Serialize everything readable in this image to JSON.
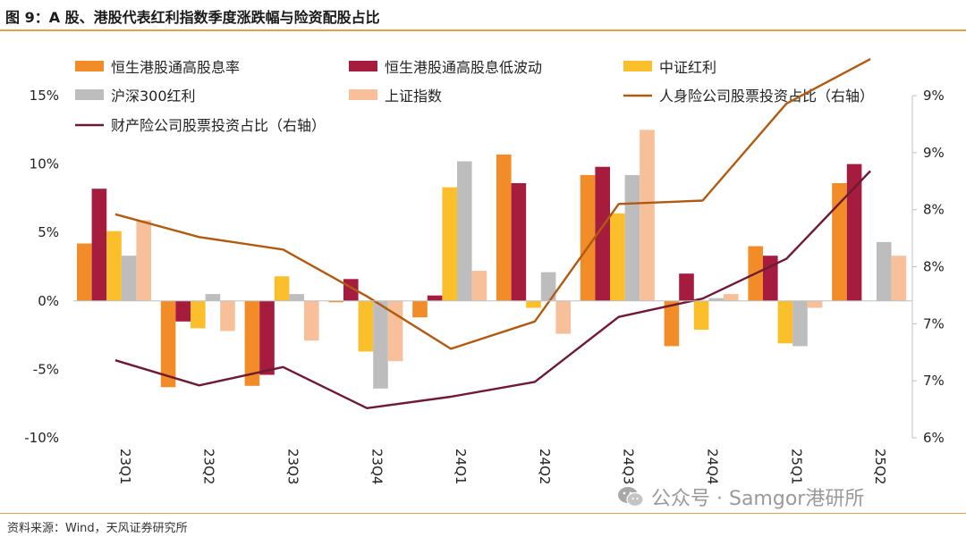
{
  "header": {
    "title": "图 9：A 股、港股代表红利指数季度涨跌幅与险资配股占比"
  },
  "footer": {
    "source": "资料来源：Wind，天风证券研究所"
  },
  "watermark": {
    "text": "公众号 · Samgor港研所",
    "icon": "wechat-icon"
  },
  "chart_data": {
    "type": "bar",
    "title": "",
    "categories": [
      "23Q1",
      "23Q2",
      "23Q3",
      "23Q4",
      "24Q1",
      "24Q2",
      "24Q3",
      "24Q4",
      "25Q1",
      "25Q2"
    ],
    "left_axis": {
      "ylim": [
        -10,
        15
      ],
      "ticks": [
        -10,
        -5,
        0,
        5,
        10,
        15
      ],
      "tick_labels": [
        "-10%",
        "-5%",
        "0%",
        "5%",
        "10%",
        "15%"
      ]
    },
    "right_axis": {
      "ylim": [
        6,
        9
      ],
      "ticks": [
        6,
        6.5,
        7,
        7.5,
        8,
        8.5,
        9
      ],
      "tick_labels": [
        "6%",
        "7%",
        "7%",
        "8%",
        "8%",
        "9%",
        "9%"
      ]
    },
    "series": [
      {
        "name": "恒生港股通高股息率",
        "kind": "bar",
        "axis": "left",
        "color": "#f28c28",
        "values": [
          4.2,
          -6.3,
          -6.2,
          -0.1,
          -1.2,
          10.7,
          9.2,
          -3.3,
          4.0,
          8.6
        ]
      },
      {
        "name": "恒生港股通高股息低波动",
        "kind": "bar",
        "axis": "left",
        "color": "#a51c3f",
        "values": [
          8.2,
          -1.5,
          -5.4,
          1.6,
          0.4,
          8.6,
          9.8,
          2.0,
          3.3,
          10.0
        ]
      },
      {
        "name": "中证红利",
        "kind": "bar",
        "axis": "left",
        "color": "#fbbf2c",
        "values": [
          5.1,
          -2.0,
          1.8,
          -3.7,
          8.3,
          -0.5,
          6.4,
          -2.1,
          -3.1,
          0.0
        ]
      },
      {
        "name": "沪深300红利",
        "kind": "bar",
        "axis": "left",
        "color": "#bdbdbd",
        "values": [
          3.3,
          0.5,
          0.5,
          -6.4,
          10.2,
          2.1,
          9.2,
          0.2,
          -3.3,
          4.3
        ]
      },
      {
        "name": "上证指数",
        "kind": "bar",
        "axis": "left",
        "color": "#f7c09a",
        "values": [
          5.9,
          -2.2,
          -2.9,
          -4.4,
          2.2,
          -2.4,
          12.5,
          0.5,
          -0.5,
          3.3
        ]
      },
      {
        "name": "人身险公司股票投资占比（右轴）",
        "kind": "line",
        "axis": "right",
        "color": "#b05a12",
        "values": [
          7.96,
          7.76,
          7.65,
          7.24,
          6.78,
          7.02,
          8.05,
          8.08,
          8.93,
          9.32
        ]
      },
      {
        "name": "财产险公司股票投资占比（右轴）",
        "kind": "line",
        "axis": "right",
        "color": "#6e1a35",
        "values": [
          6.68,
          6.46,
          6.62,
          6.26,
          6.36,
          6.49,
          7.06,
          7.22,
          7.57,
          8.34
        ]
      }
    ]
  }
}
